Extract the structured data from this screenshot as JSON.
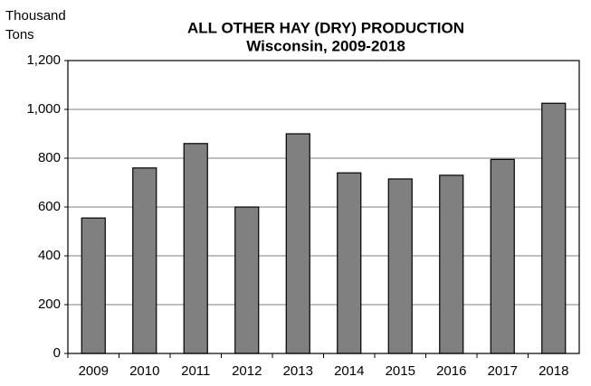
{
  "chart_data": {
    "type": "bar",
    "title": "ALL OTHER HAY (DRY) PRODUCTION",
    "subtitle": "Wisconsin, 2009-2018",
    "y_label": [
      "Thousand",
      "Tons"
    ],
    "categories": [
      "2009",
      "2010",
      "2011",
      "2012",
      "2013",
      "2014",
      "2015",
      "2016",
      "2017",
      "2018"
    ],
    "values": [
      555,
      760,
      860,
      600,
      900,
      740,
      715,
      730,
      795,
      1025
    ],
    "color": "#808080",
    "ylim": [
      0,
      1200
    ],
    "yticks": [
      0,
      200,
      400,
      600,
      800,
      {
        "value": 1000,
        "label": "1,000"
      },
      {
        "value": 1200,
        "label": "1,200"
      }
    ],
    "grid": true
  }
}
